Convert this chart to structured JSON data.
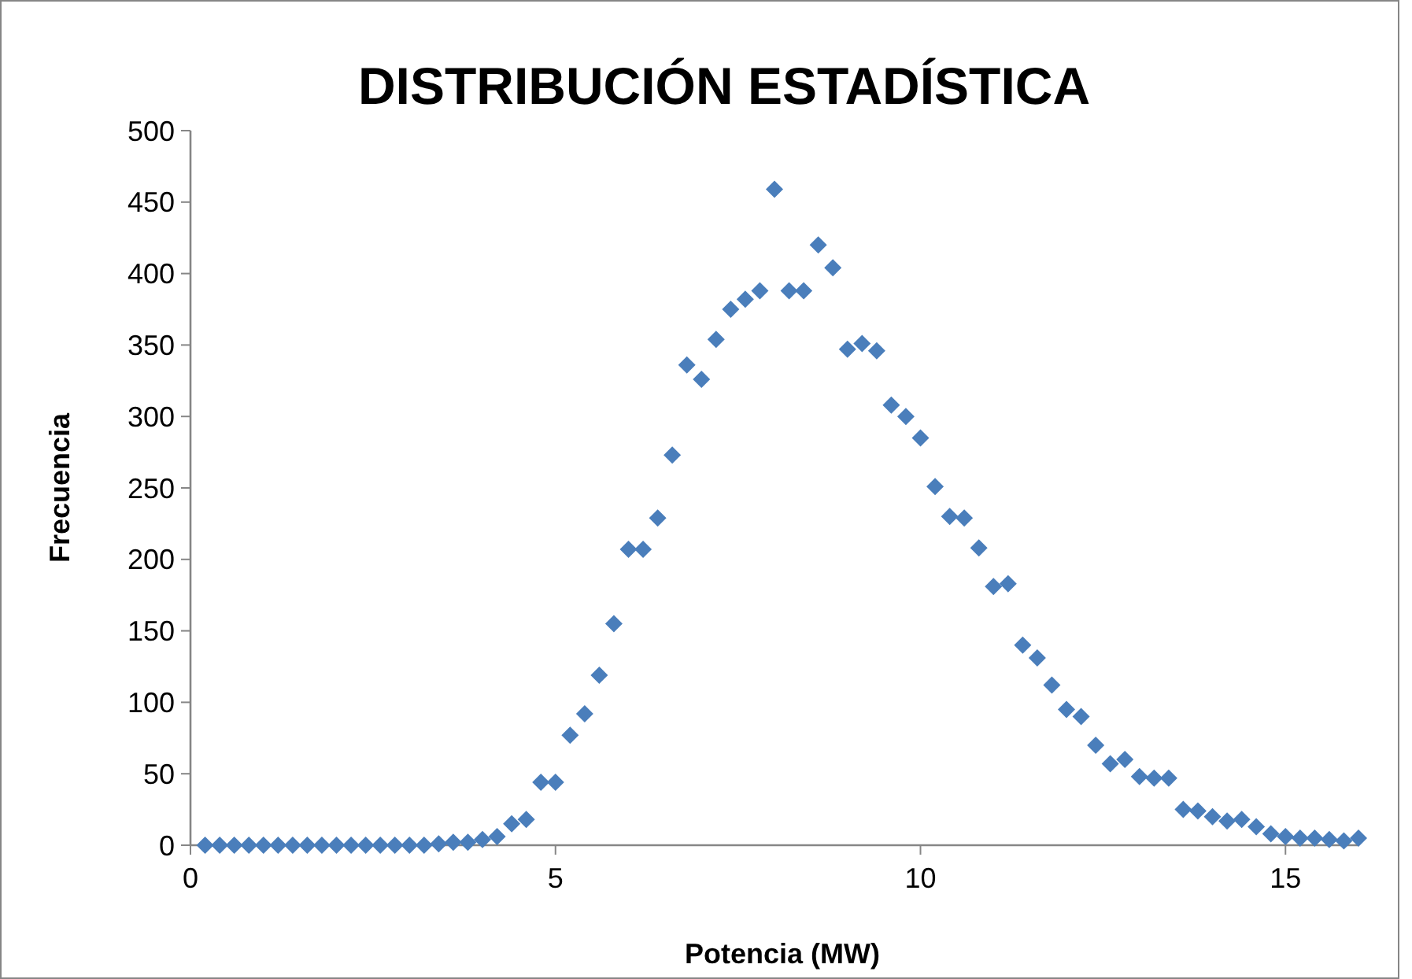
{
  "chart_data": {
    "type": "scatter",
    "title": "DISTRIBUCIÓN ESTADÍSTICA",
    "xlabel": "Potencia (MW)",
    "ylabel": "Frecuencia",
    "x": [
      0.2,
      0.4,
      0.6,
      0.8,
      1.0,
      1.2,
      1.4,
      1.6,
      1.8,
      2.0,
      2.2,
      2.4,
      2.6,
      2.8,
      3.0,
      3.2,
      3.4,
      3.6,
      3.8,
      4.0,
      4.2,
      4.4,
      4.6,
      4.8,
      5.0,
      5.2,
      5.4,
      5.6,
      5.8,
      6.0,
      6.2,
      6.4,
      6.6,
      6.8,
      7.0,
      7.2,
      7.4,
      7.6,
      7.8,
      8.0,
      8.2,
      8.4,
      8.6,
      8.8,
      9.0,
      9.2,
      9.4,
      9.6,
      9.8,
      10.0,
      10.2,
      10.4,
      10.6,
      10.8,
      11.0,
      11.2,
      11.4,
      11.6,
      11.8,
      12.0,
      12.2,
      12.4,
      12.6,
      12.8,
      13.0,
      13.2,
      13.4,
      13.6,
      13.8,
      14.0,
      14.2,
      14.4,
      14.6,
      14.8,
      15.0,
      15.2,
      15.4,
      15.6,
      15.8,
      16.0
    ],
    "series": [
      {
        "color": "#4a7ebb",
        "values": [
          0,
          0,
          0,
          0,
          0,
          0,
          0,
          0,
          0,
          0,
          0,
          0,
          0,
          0,
          0,
          0,
          1,
          2,
          2,
          4,
          6,
          15,
          18,
          44,
          44,
          77,
          92,
          119,
          155,
          207,
          207,
          229,
          273,
          336,
          326,
          354,
          375,
          382,
          388,
          459,
          388,
          388,
          420,
          404,
          347,
          351,
          346,
          308,
          300,
          285,
          251,
          230,
          229,
          208,
          181,
          183,
          140,
          131,
          112,
          95,
          90,
          70,
          57,
          60,
          48,
          47,
          47,
          25,
          24,
          20,
          17,
          18,
          13,
          8,
          6,
          5,
          5,
          4,
          3,
          5
        ]
      }
    ],
    "xlim": [
      0,
      16
    ],
    "xticks": [
      0,
      5,
      10,
      15
    ],
    "ylim": [
      0,
      500
    ],
    "yticks": [
      0,
      50,
      100,
      150,
      200,
      250,
      300,
      350,
      400,
      450,
      500
    ],
    "marker": "diamond",
    "grid": false
  }
}
